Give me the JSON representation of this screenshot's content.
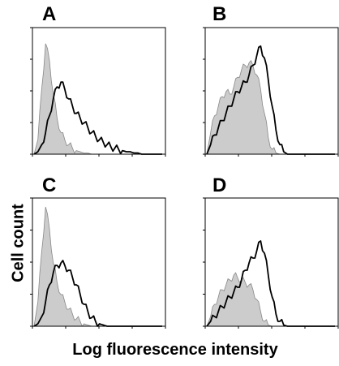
{
  "ylabel": "Cell count",
  "xlabel": "Log fluorescence intensity",
  "colors": {
    "filled": "#cccccc",
    "filled_stroke": "#888888",
    "line": "#000000",
    "frame": "#000000"
  },
  "chart_data": [
    {
      "type": "area",
      "panel": "A",
      "xlim": [
        0,
        1
      ],
      "ylim": [
        0,
        1
      ],
      "x": [
        0.0,
        0.03,
        0.06,
        0.09,
        0.12,
        0.15,
        0.18,
        0.21,
        0.24,
        0.27,
        0.3,
        0.33,
        0.36,
        0.39,
        0.42,
        0.45,
        0.48,
        0.51,
        0.54,
        0.57,
        0.6,
        0.63,
        0.66,
        0.69,
        0.72,
        0.75,
        0.78,
        0.81,
        0.84,
        0.87,
        0.9,
        0.93,
        0.96,
        1.0
      ],
      "series": [
        {
          "style": "filled",
          "values": [
            0.0,
            0.12,
            0.55,
            0.92,
            0.78,
            0.5,
            0.3,
            0.18,
            0.12,
            0.08,
            0.05,
            0.03,
            0.02,
            0.01,
            0.01,
            0.0,
            0.0,
            0.0,
            0.0,
            0.0,
            0.0,
            0.0,
            0.0,
            0.0,
            0.0,
            0.0,
            0.0,
            0.0,
            0.0,
            0.0,
            0.0,
            0.0,
            0.0,
            0.0
          ]
        },
        {
          "style": "line",
          "values": [
            0.0,
            0.02,
            0.08,
            0.18,
            0.32,
            0.46,
            0.56,
            0.6,
            0.54,
            0.46,
            0.4,
            0.34,
            0.3,
            0.26,
            0.22,
            0.18,
            0.15,
            0.12,
            0.1,
            0.08,
            0.06,
            0.05,
            0.04,
            0.03,
            0.02,
            0.02,
            0.01,
            0.01,
            0.0,
            0.0,
            0.0,
            0.0,
            0.0,
            0.0
          ]
        }
      ]
    },
    {
      "type": "area",
      "panel": "B",
      "xlim": [
        0,
        1
      ],
      "ylim": [
        0,
        1
      ],
      "x": [
        0.0,
        0.03,
        0.06,
        0.09,
        0.12,
        0.15,
        0.18,
        0.21,
        0.24,
        0.27,
        0.3,
        0.33,
        0.36,
        0.39,
        0.42,
        0.45,
        0.48,
        0.51,
        0.54,
        0.57,
        0.6,
        0.63,
        0.66,
        0.69,
        0.72,
        0.75,
        0.78,
        0.81,
        0.84,
        0.87,
        0.9,
        0.93,
        0.96,
        1.0
      ],
      "series": [
        {
          "style": "filled",
          "values": [
            0.0,
            0.18,
            0.32,
            0.4,
            0.48,
            0.52,
            0.5,
            0.56,
            0.64,
            0.7,
            0.74,
            0.76,
            0.74,
            0.66,
            0.54,
            0.34,
            0.14,
            0.04,
            0.01,
            0.0,
            0.0,
            0.0,
            0.0,
            0.0,
            0.0,
            0.0,
            0.0,
            0.0,
            0.0,
            0.0,
            0.0,
            0.0,
            0.0,
            0.0
          ]
        },
        {
          "style": "line",
          "values": [
            0.0,
            0.08,
            0.16,
            0.22,
            0.28,
            0.34,
            0.4,
            0.46,
            0.52,
            0.56,
            0.6,
            0.66,
            0.74,
            0.82,
            0.9,
            0.8,
            0.62,
            0.4,
            0.2,
            0.08,
            0.02,
            0.0,
            0.0,
            0.0,
            0.0,
            0.0,
            0.0,
            0.0,
            0.0,
            0.0,
            0.0,
            0.0,
            0.0,
            0.0
          ]
        }
      ]
    },
    {
      "type": "area",
      "panel": "C",
      "xlim": [
        0,
        1
      ],
      "ylim": [
        0,
        1
      ],
      "x": [
        0.0,
        0.03,
        0.06,
        0.09,
        0.12,
        0.15,
        0.18,
        0.21,
        0.24,
        0.27,
        0.3,
        0.33,
        0.36,
        0.39,
        0.42,
        0.45,
        0.48,
        0.51,
        0.54,
        0.57,
        0.6,
        0.63,
        0.66,
        0.69,
        0.72,
        0.75,
        0.78,
        0.81,
        0.84,
        0.87,
        0.9,
        0.93,
        0.96,
        1.0
      ],
      "series": [
        {
          "style": "filled",
          "values": [
            0.0,
            0.2,
            0.62,
            0.98,
            0.8,
            0.52,
            0.36,
            0.26,
            0.2,
            0.14,
            0.1,
            0.06,
            0.04,
            0.02,
            0.01,
            0.0,
            0.0,
            0.0,
            0.0,
            0.0,
            0.0,
            0.0,
            0.0,
            0.0,
            0.0,
            0.0,
            0.0,
            0.0,
            0.0,
            0.0,
            0.0,
            0.0,
            0.0,
            0.0
          ]
        },
        {
          "style": "line",
          "values": [
            0.0,
            0.02,
            0.08,
            0.2,
            0.34,
            0.44,
            0.5,
            0.52,
            0.5,
            0.46,
            0.4,
            0.34,
            0.26,
            0.18,
            0.12,
            0.07,
            0.04,
            0.02,
            0.01,
            0.0,
            0.0,
            0.0,
            0.0,
            0.0,
            0.0,
            0.0,
            0.0,
            0.0,
            0.0,
            0.0,
            0.0,
            0.0,
            0.0,
            0.0
          ]
        }
      ]
    },
    {
      "type": "area",
      "panel": "D",
      "xlim": [
        0,
        1
      ],
      "ylim": [
        0,
        1
      ],
      "x": [
        0.0,
        0.03,
        0.06,
        0.09,
        0.12,
        0.15,
        0.18,
        0.21,
        0.24,
        0.27,
        0.3,
        0.33,
        0.36,
        0.39,
        0.42,
        0.45,
        0.48,
        0.51,
        0.54,
        0.57,
        0.6,
        0.63,
        0.66,
        0.69,
        0.72,
        0.75,
        0.78,
        0.81,
        0.84,
        0.87,
        0.9,
        0.93,
        0.96,
        1.0
      ],
      "series": [
        {
          "style": "filled",
          "values": [
            0.0,
            0.08,
            0.18,
            0.24,
            0.3,
            0.34,
            0.38,
            0.42,
            0.4,
            0.38,
            0.36,
            0.34,
            0.3,
            0.22,
            0.12,
            0.04,
            0.01,
            0.0,
            0.0,
            0.0,
            0.0,
            0.0,
            0.0,
            0.0,
            0.0,
            0.0,
            0.0,
            0.0,
            0.0,
            0.0,
            0.0,
            0.0,
            0.0,
            0.0
          ]
        },
        {
          "style": "line",
          "values": [
            0.0,
            0.04,
            0.08,
            0.12,
            0.16,
            0.2,
            0.24,
            0.28,
            0.32,
            0.38,
            0.46,
            0.52,
            0.56,
            0.62,
            0.7,
            0.6,
            0.42,
            0.24,
            0.1,
            0.04,
            0.01,
            0.0,
            0.0,
            0.0,
            0.0,
            0.0,
            0.0,
            0.0,
            0.0,
            0.0,
            0.0,
            0.0,
            0.0,
            0.0
          ]
        }
      ]
    }
  ]
}
